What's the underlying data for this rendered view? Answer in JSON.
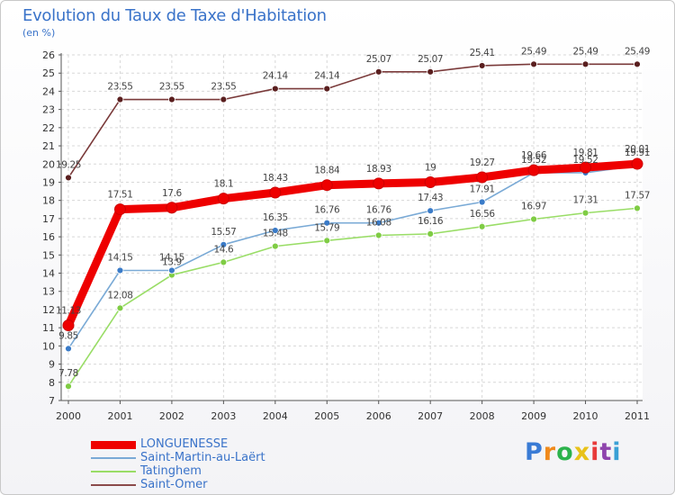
{
  "chart_data": {
    "type": "line",
    "title": "Evolution du Taux de Taxe d'Habitation",
    "subtitle": "(en %)",
    "xlabel": "",
    "ylabel": "",
    "ylim": [
      7,
      26
    ],
    "y_ticks": [
      "7",
      "8",
      "9",
      "10",
      "11",
      "12",
      "13",
      "14",
      "15",
      "16",
      "17",
      "18",
      "19",
      "20",
      "21",
      "22",
      "23",
      "24",
      "25",
      "26"
    ],
    "categories": [
      "2000",
      "2001",
      "2002",
      "2003",
      "2004",
      "2005",
      "2006",
      "2007",
      "2008",
      "2009",
      "2010",
      "2011"
    ],
    "series": [
      {
        "name": "LONGUENESSE",
        "color": "#ee0000",
        "values": [
          11.13,
          17.51,
          17.6,
          18.1,
          18.43,
          18.84,
          18.93,
          19.0,
          19.27,
          19.66,
          19.81,
          20.01
        ],
        "labels": [
          "11.13",
          "17.51",
          "17.6",
          "18.1",
          "18.43",
          "18.84",
          "18.93",
          "19",
          "19.27",
          "19.66",
          "19.81",
          "20.01"
        ]
      },
      {
        "name": "Saint-Martin-au-Laërt",
        "color": "#7aaad6",
        "values": [
          9.85,
          14.15,
          14.15,
          15.57,
          16.35,
          16.76,
          16.76,
          17.43,
          17.91,
          19.52,
          19.52,
          19.91
        ],
        "labels": [
          "9.85",
          "14.15",
          "14.15",
          "15.57",
          "16.35",
          "16.76",
          "16.76",
          "17.43",
          "17.91",
          "19.52",
          "19.52",
          "19.91"
        ]
      },
      {
        "name": "Tatinghem",
        "color": "#99dd66",
        "values": [
          7.78,
          12.08,
          13.9,
          14.6,
          15.48,
          15.79,
          16.08,
          16.16,
          16.56,
          16.97,
          17.31,
          17.57
        ],
        "labels": [
          "7.78",
          "12.08",
          "13.9",
          "14.6",
          "15.48",
          "15.79",
          "16.08",
          "16.16",
          "16.56",
          "16.97",
          "17.31",
          "17.57"
        ]
      },
      {
        "name": "Saint-Omer",
        "color": "#8b4a4a",
        "values": [
          19.25,
          23.55,
          23.55,
          23.55,
          24.14,
          24.14,
          25.07,
          25.07,
          25.41,
          25.49,
          25.49,
          25.49
        ],
        "labels": [
          "19.25",
          "23.55",
          "23.55",
          "23.55",
          "24.14",
          "24.14",
          "25.07",
          "25.07",
          "25.41",
          "25.49",
          "25.49",
          "25.49"
        ]
      }
    ],
    "legend": "bottom-left",
    "grid": true
  },
  "logo": {
    "letters": [
      "P",
      "r",
      "o",
      "x",
      "i",
      "t",
      "i"
    ],
    "colors": [
      "#3a7bd5",
      "#f08a1c",
      "#2bb24c",
      "#e8c21a",
      "#e83a3a",
      "#8e44ad",
      "#3aa0d5"
    ]
  }
}
